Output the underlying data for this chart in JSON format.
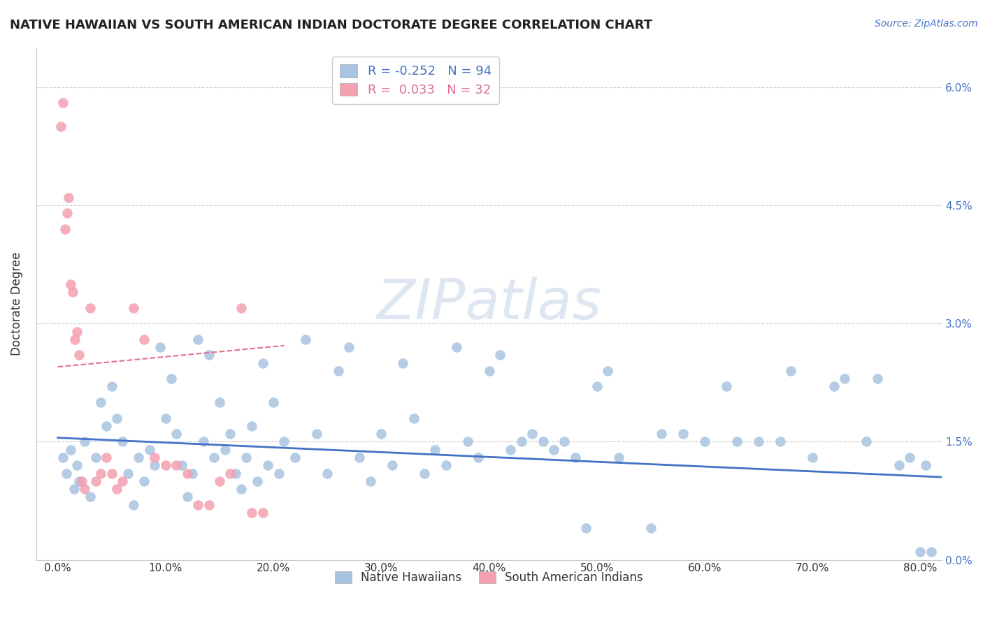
{
  "title": "NATIVE HAWAIIAN VS SOUTH AMERICAN INDIAN DOCTORATE DEGREE CORRELATION CHART",
  "source": "Source: ZipAtlas.com",
  "ylabel": "Doctorate Degree",
  "legend_label_nh": "Native Hawaiians",
  "legend_label_sa": "South American Indians",
  "legend_blue_text": "R = -0.252   N = 94",
  "legend_pink_text": "R =  0.033   N = 32",
  "xmin": -2.0,
  "xmax": 82.0,
  "ymin": 0.0,
  "ymax": 6.5,
  "yticks": [
    0.0,
    1.5,
    3.0,
    4.5,
    6.0
  ],
  "xticks": [
    0.0,
    10.0,
    20.0,
    30.0,
    40.0,
    50.0,
    60.0,
    70.0,
    80.0
  ],
  "blue_dot_color": "#a8c4e0",
  "pink_dot_color": "#f4a0b0",
  "blue_line_color": "#4472c4",
  "pink_line_color": "#e07090",
  "background_color": "#ffffff",
  "watermark": "ZIPatlas",
  "watermark_color": "#c8d8e8",
  "title_fontsize": 13,
  "axis_label_fontsize": 12,
  "tick_fontsize": 11,
  "source_fontsize": 10,
  "blue_scatter_x": [
    0.5,
    0.8,
    1.2,
    1.5,
    1.8,
    2.0,
    2.5,
    3.0,
    3.5,
    4.0,
    4.5,
    5.0,
    5.5,
    6.0,
    6.5,
    7.0,
    7.5,
    8.0,
    8.5,
    9.0,
    9.5,
    10.0,
    10.5,
    11.0,
    11.5,
    12.0,
    12.5,
    13.0,
    13.5,
    14.0,
    14.5,
    15.0,
    15.5,
    16.0,
    16.5,
    17.0,
    17.5,
    18.0,
    18.5,
    19.0,
    19.5,
    20.0,
    20.5,
    21.0,
    22.0,
    23.0,
    24.0,
    25.0,
    26.0,
    27.0,
    28.0,
    29.0,
    30.0,
    31.0,
    32.0,
    33.0,
    34.0,
    35.0,
    36.0,
    37.0,
    38.0,
    39.0,
    40.0,
    41.0,
    42.0,
    43.0,
    44.0,
    45.0,
    46.0,
    47.0,
    48.0,
    49.0,
    50.0,
    51.0,
    55.0,
    58.0,
    60.0,
    62.0,
    65.0,
    68.0,
    70.0,
    72.0,
    75.0,
    76.0,
    78.0,
    79.0,
    80.0,
    80.5,
    81.0,
    63.0,
    67.0,
    73.0,
    56.0,
    52.0
  ],
  "blue_scatter_y": [
    1.3,
    1.1,
    1.4,
    0.9,
    1.2,
    1.0,
    1.5,
    0.8,
    1.3,
    2.0,
    1.7,
    2.2,
    1.8,
    1.5,
    1.1,
    0.7,
    1.3,
    1.0,
    1.4,
    1.2,
    2.7,
    1.8,
    2.3,
    1.6,
    1.2,
    0.8,
    1.1,
    2.8,
    1.5,
    2.6,
    1.3,
    2.0,
    1.4,
    1.6,
    1.1,
    0.9,
    1.3,
    1.7,
    1.0,
    2.5,
    1.2,
    2.0,
    1.1,
    1.5,
    1.3,
    2.8,
    1.6,
    1.1,
    2.4,
    2.7,
    1.3,
    1.0,
    1.6,
    1.2,
    2.5,
    1.8,
    1.1,
    1.4,
    1.2,
    2.7,
    1.5,
    1.3,
    2.4,
    2.6,
    1.4,
    1.5,
    1.6,
    1.5,
    1.4,
    1.5,
    1.3,
    0.4,
    2.2,
    2.4,
    0.4,
    1.6,
    1.5,
    2.2,
    1.5,
    2.4,
    1.3,
    2.2,
    1.5,
    2.3,
    1.2,
    1.3,
    0.1,
    1.2,
    0.1,
    1.5,
    1.5,
    2.3,
    1.6,
    1.3
  ],
  "pink_scatter_x": [
    0.3,
    0.5,
    0.7,
    0.9,
    1.0,
    1.2,
    1.4,
    1.6,
    1.8,
    2.0,
    2.2,
    2.5,
    3.0,
    3.5,
    4.0,
    4.5,
    5.0,
    5.5,
    6.0,
    7.0,
    8.0,
    9.0,
    10.0,
    11.0,
    12.0,
    13.0,
    14.0,
    15.0,
    16.0,
    17.0,
    18.0,
    19.0
  ],
  "pink_scatter_y": [
    5.5,
    5.8,
    4.2,
    4.4,
    4.6,
    3.5,
    3.4,
    2.8,
    2.9,
    2.6,
    1.0,
    0.9,
    3.2,
    1.0,
    1.1,
    1.3,
    1.1,
    0.9,
    1.0,
    3.2,
    2.8,
    1.3,
    1.2,
    1.2,
    1.1,
    0.7,
    0.7,
    1.0,
    1.1,
    3.2,
    0.6,
    0.6
  ],
  "blue_line_x": [
    0.0,
    82.0
  ],
  "blue_line_y": [
    1.55,
    1.05
  ],
  "pink_line_x": [
    0.0,
    21.0
  ],
  "pink_line_y": [
    2.45,
    2.72
  ]
}
